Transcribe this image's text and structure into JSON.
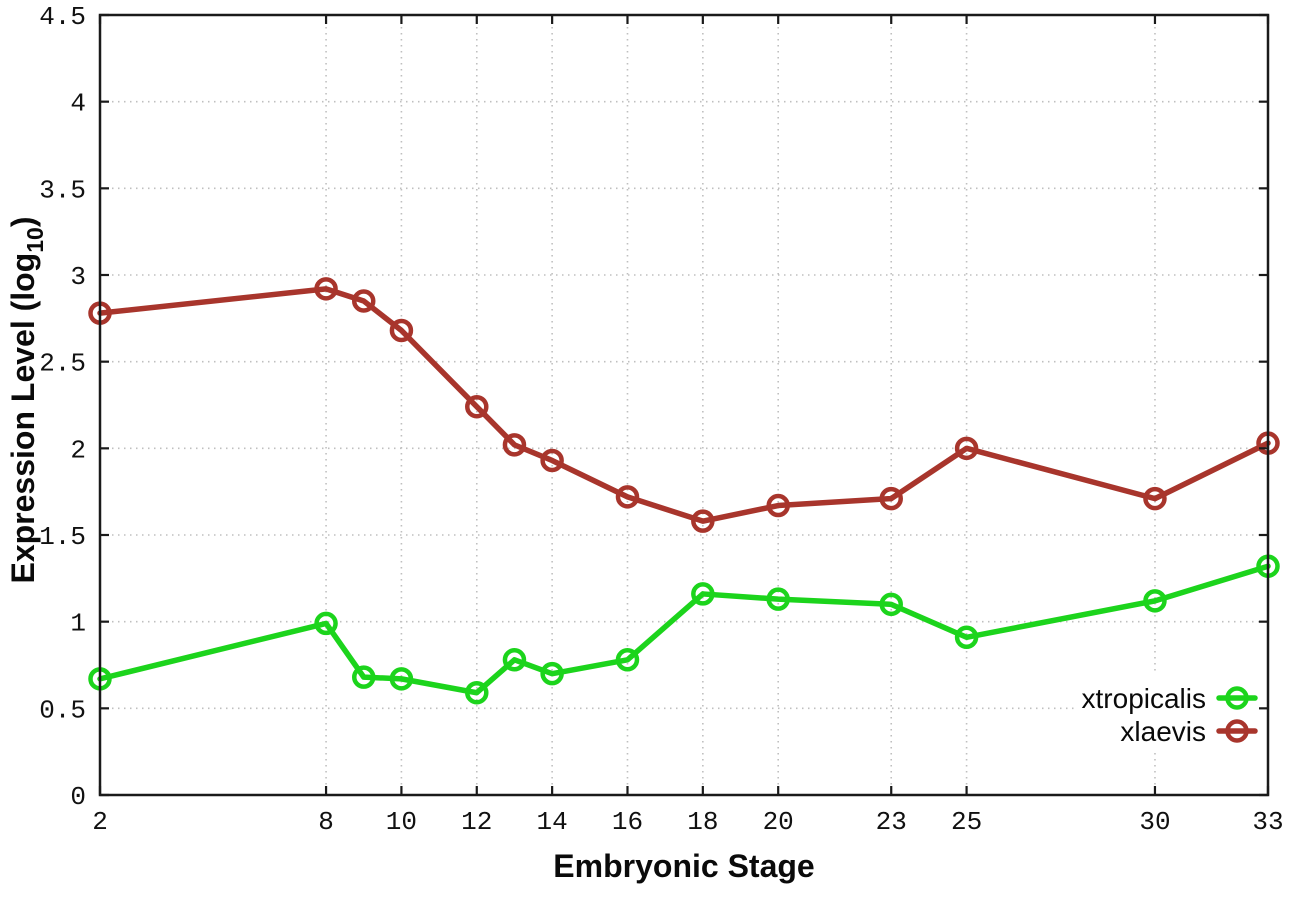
{
  "chart_data": {
    "type": "line",
    "title": "",
    "xlabel": "Embryonic Stage",
    "ylabel": "Expression Level (log10)",
    "ylabel_main": "Expression Level (log",
    "ylabel_sub": "10",
    "ylabel_close": ")",
    "xlim": [
      2,
      33
    ],
    "ylim": [
      0,
      4.5
    ],
    "x_ticks": [
      2,
      8,
      10,
      12,
      14,
      16,
      18,
      20,
      23,
      25,
      30,
      33
    ],
    "y_ticks": [
      0,
      0.5,
      1,
      1.5,
      2,
      2.5,
      3,
      3.5,
      4,
      4.5
    ],
    "grid": true,
    "legend_position": "bottom-right",
    "x": [
      2,
      8,
      9,
      10,
      12,
      13,
      14,
      16,
      18,
      20,
      23,
      25,
      30,
      33
    ],
    "series": [
      {
        "name": "xtropicalis",
        "color": "#1cd41c",
        "values": [
          0.67,
          0.99,
          0.68,
          0.67,
          0.59,
          0.78,
          0.7,
          0.78,
          1.16,
          1.13,
          1.1,
          0.91,
          1.12,
          1.32
        ]
      },
      {
        "name": "xlaevis",
        "color": "#a8352c",
        "values": [
          2.78,
          2.92,
          2.85,
          2.68,
          2.24,
          2.02,
          1.93,
          1.72,
          1.58,
          1.67,
          1.71,
          2.0,
          1.71,
          2.03
        ]
      }
    ],
    "colors": {
      "border": "#1a1a1a",
      "grid": "#bfbfbf",
      "background": "#ffffff"
    }
  }
}
